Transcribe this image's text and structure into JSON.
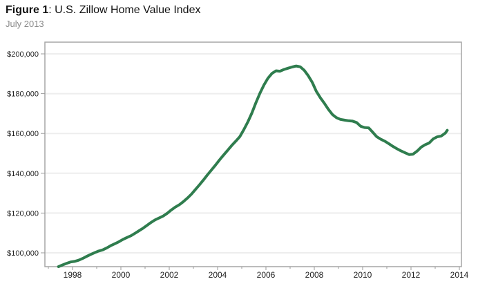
{
  "header": {
    "title_bold": "Figure 1",
    "title_rest": ": U.S. Zillow Home Value Index",
    "subtitle": "July 2013"
  },
  "chart_data": {
    "type": "line",
    "title": "Figure 1: U.S. Zillow Home Value Index",
    "subtitle": "July 2013",
    "xlabel": "",
    "ylabel": "",
    "x_unit": "year (decimal, monthly series)",
    "y_unit": "USD",
    "xlim": [
      1996.85,
      2014.1
    ],
    "ylim": [
      93000,
      205500
    ],
    "grid": "horizontal-only",
    "legend": "none",
    "line_color": "#2f7d4e",
    "y_tick_values": [
      100000,
      120000,
      140000,
      160000,
      180000,
      200000
    ],
    "y_tick_labels": [
      "$100,000",
      "$120,000",
      "$140,000",
      "$160,000",
      "$180,000",
      "$200,000"
    ],
    "x_major_tick_values": [
      1998,
      2000,
      2002,
      2004,
      2006,
      2008,
      2010,
      2012,
      2014
    ],
    "x_major_tick_labels": [
      "1998",
      "2000",
      "2002",
      "2004",
      "2006",
      "2008",
      "2010",
      "2012",
      "2014"
    ],
    "x_minor_tick_values": [
      1997,
      1999,
      2001,
      2003,
      2005,
      2007,
      2009,
      2011,
      2013
    ],
    "series": [
      {
        "name": "U.S. Zillow Home Value Index",
        "points": [
          [
            1997.42,
            93000
          ],
          [
            1997.58,
            93900
          ],
          [
            1997.75,
            94700
          ],
          [
            1997.92,
            95400
          ],
          [
            1998.08,
            95700
          ],
          [
            1998.25,
            96300
          ],
          [
            1998.42,
            97200
          ],
          [
            1998.58,
            98200
          ],
          [
            1998.75,
            99200
          ],
          [
            1998.92,
            100100
          ],
          [
            1999.08,
            100900
          ],
          [
            1999.25,
            101500
          ],
          [
            1999.42,
            102500
          ],
          [
            1999.58,
            103600
          ],
          [
            1999.75,
            104600
          ],
          [
            1999.92,
            105600
          ],
          [
            2000.08,
            106700
          ],
          [
            2000.25,
            107700
          ],
          [
            2000.42,
            108600
          ],
          [
            2000.58,
            109800
          ],
          [
            2000.75,
            111100
          ],
          [
            2000.92,
            112400
          ],
          [
            2001.08,
            113800
          ],
          [
            2001.25,
            115300
          ],
          [
            2001.42,
            116600
          ],
          [
            2001.58,
            117500
          ],
          [
            2001.75,
            118500
          ],
          [
            2001.92,
            119900
          ],
          [
            2002.08,
            121500
          ],
          [
            2002.25,
            123000
          ],
          [
            2002.42,
            124200
          ],
          [
            2002.58,
            125700
          ],
          [
            2002.75,
            127500
          ],
          [
            2002.92,
            129500
          ],
          [
            2003.08,
            131800
          ],
          [
            2003.25,
            134200
          ],
          [
            2003.42,
            136700
          ],
          [
            2003.58,
            139200
          ],
          [
            2003.75,
            141700
          ],
          [
            2003.92,
            144200
          ],
          [
            2004.08,
            146700
          ],
          [
            2004.25,
            149200
          ],
          [
            2004.42,
            151600
          ],
          [
            2004.58,
            153900
          ],
          [
            2004.75,
            156100
          ],
          [
            2004.92,
            158400
          ],
          [
            2005.08,
            161800
          ],
          [
            2005.25,
            165800
          ],
          [
            2005.42,
            170300
          ],
          [
            2005.58,
            175300
          ],
          [
            2005.75,
            180200
          ],
          [
            2005.92,
            184400
          ],
          [
            2006.08,
            187700
          ],
          [
            2006.25,
            190200
          ],
          [
            2006.42,
            191500
          ],
          [
            2006.58,
            191300
          ],
          [
            2006.75,
            192200
          ],
          [
            2006.92,
            192800
          ],
          [
            2007.08,
            193400
          ],
          [
            2007.25,
            193900
          ],
          [
            2007.42,
            193500
          ],
          [
            2007.58,
            191800
          ],
          [
            2007.75,
            189000
          ],
          [
            2007.92,
            185600
          ],
          [
            2008.08,
            181300
          ],
          [
            2008.25,
            177900
          ],
          [
            2008.42,
            175100
          ],
          [
            2008.58,
            172200
          ],
          [
            2008.75,
            169500
          ],
          [
            2008.92,
            167900
          ],
          [
            2009.08,
            167100
          ],
          [
            2009.25,
            166700
          ],
          [
            2009.42,
            166400
          ],
          [
            2009.58,
            166200
          ],
          [
            2009.75,
            165500
          ],
          [
            2009.92,
            163600
          ],
          [
            2010.08,
            163000
          ],
          [
            2010.25,
            162800
          ],
          [
            2010.42,
            160600
          ],
          [
            2010.58,
            158400
          ],
          [
            2010.75,
            157100
          ],
          [
            2010.92,
            156100
          ],
          [
            2011.08,
            154900
          ],
          [
            2011.25,
            153500
          ],
          [
            2011.42,
            152300
          ],
          [
            2011.58,
            151300
          ],
          [
            2011.75,
            150300
          ],
          [
            2011.92,
            149400
          ],
          [
            2012.08,
            149600
          ],
          [
            2012.25,
            151100
          ],
          [
            2012.42,
            153100
          ],
          [
            2012.58,
            154300
          ],
          [
            2012.75,
            155200
          ],
          [
            2012.92,
            157300
          ],
          [
            2013.08,
            158300
          ],
          [
            2013.25,
            158700
          ],
          [
            2013.42,
            160200
          ],
          [
            2013.5,
            161600
          ]
        ]
      }
    ],
    "annotations": {
      "series_start_value": 93000,
      "peak": {
        "x": 2007.25,
        "value": 193900
      },
      "trough_post_bubble": {
        "x": 2011.92,
        "value": 149400
      },
      "latest": {
        "x": 2013.5,
        "label": "July 2013",
        "value": 161600
      }
    }
  },
  "style": {
    "line_color": "#2f7d4e",
    "gridline_color": "#ededed",
    "border_color": "#a6a6a6",
    "tick_color": "#999999",
    "title_color": "#111111",
    "subtitle_color": "#8a8a8a",
    "background": "#ffffff"
  }
}
